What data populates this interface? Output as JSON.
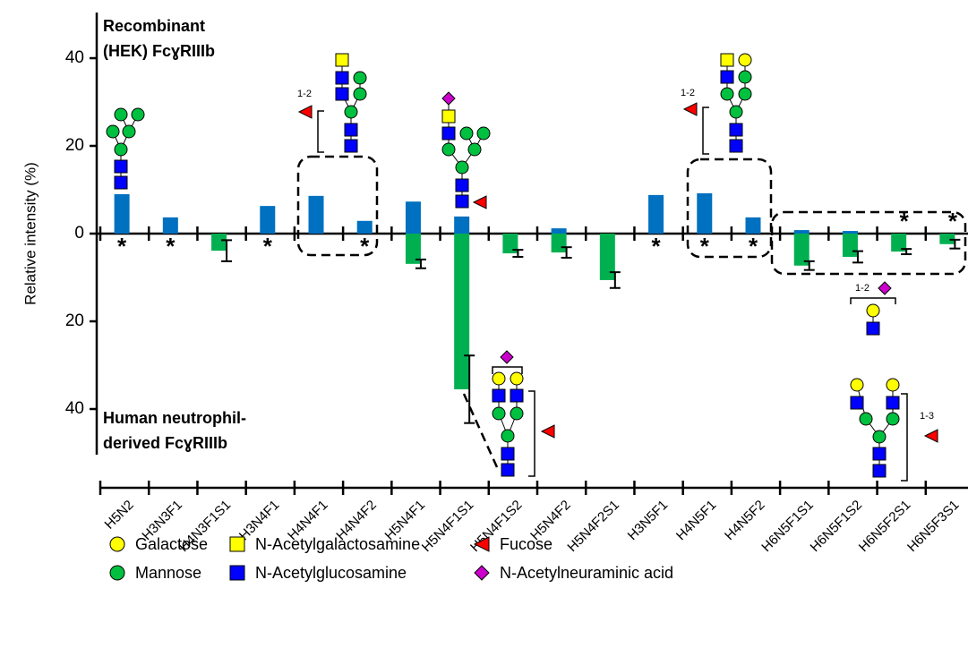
{
  "chart_data": {
    "type": "bar",
    "y_label": "Relative intensity (%)",
    "categories": [
      "H5N2",
      "H3N3F1",
      "H4N3F1S1",
      "H3N4F1",
      "H4N4F1",
      "H4N4F2",
      "H5N4F1",
      "H5N4F1S1",
      "H5N4F1S2",
      "H5N4F2",
      "H5N4F2S1",
      "H3N5F1",
      "H4N5F1",
      "H4N5F2",
      "H6N5F1S1",
      "H6N5F1S2",
      "H6N5F2S1",
      "H6N5F3S1"
    ],
    "series": [
      {
        "name_lines": [
          "Recombinant",
          "(HEK) Fcɣ​RIIIb"
        ],
        "color": "#0070c0",
        "values": [
          9.0,
          3.7,
          null,
          6.3,
          8.6,
          2.9,
          7.3,
          3.9,
          null,
          1.2,
          null,
          8.8,
          9.2,
          3.7,
          0.8,
          0.6,
          null,
          null
        ],
        "asterisk_at": [
          16,
          17
        ]
      },
      {
        "name_lines": [
          "Human neutrophil-",
          "derived Fcɣ​RIIIb"
        ],
        "color": "#00b050",
        "values": [
          null,
          null,
          -3.9,
          null,
          null,
          null,
          -6.9,
          -35.5,
          -4.5,
          -4.3,
          -10.6,
          null,
          null,
          null,
          -7.3,
          -5.3,
          -4.1,
          -2.4
        ],
        "errors": [
          null,
          null,
          2.4,
          null,
          null,
          null,
          1.0,
          7.7,
          0.8,
          1.2,
          1.8,
          null,
          null,
          null,
          1.0,
          1.3,
          0.6,
          1.0
        ],
        "asterisk_at": [
          0,
          1,
          3,
          5,
          11,
          12,
          13
        ]
      }
    ],
    "asterisk": "*",
    "ylim": [
      -50,
      50
    ],
    "yticks": [
      40,
      20,
      0,
      {
        "value": -20,
        "label": "20"
      },
      {
        "value": -40,
        "label": "40"
      }
    ],
    "linkage_labels": [
      "1-2",
      "1-2",
      "1-2",
      "1-3"
    ],
    "legend": [
      {
        "label": "Galactose",
        "shape": "circle",
        "color": "#ffff00"
      },
      {
        "label": "N-Acetylgalactosamine",
        "shape": "square",
        "color": "#ffff00"
      },
      {
        "label": "Fucose",
        "shape": "triangle",
        "color": "#ff0000"
      },
      {
        "label": "Mannose",
        "shape": "circle",
        "color": "#00c040"
      },
      {
        "label": "N-Acetylglucosamine",
        "shape": "square",
        "color": "#0000ff"
      },
      {
        "label": "N-Acetylneuraminic acid",
        "shape": "diamond",
        "color": "#cc00cc"
      }
    ]
  }
}
